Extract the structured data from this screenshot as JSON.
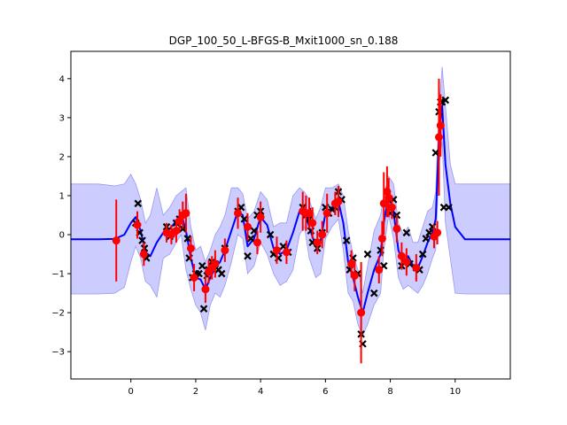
{
  "chart_data": {
    "type": "line",
    "title": "DGP_100_50_L-BFGS-B_Mxit1000_sn_0.188",
    "xlabel": "",
    "ylabel": "",
    "xlim": [
      -1.85,
      11.7
    ],
    "ylim": [
      -3.7,
      4.7
    ],
    "xticks": [
      0,
      2,
      4,
      6,
      8,
      10
    ],
    "yticks": [
      -3,
      -2,
      -1,
      0,
      1,
      2,
      3,
      4
    ],
    "grid": false,
    "colors": {
      "mean": "#0000ff",
      "band": "#ccccff",
      "band_edge": "#9999ee",
      "observed": "#000000",
      "predicted": "#ff0000",
      "error_bar": "#ff0000",
      "axes": "#000000"
    },
    "series": [
      {
        "type": "mean_line",
        "x": [
          -1.85,
          -1.0,
          -0.5,
          -0.2,
          0.0,
          0.15,
          0.3,
          0.45,
          0.6,
          0.8,
          1.0,
          1.2,
          1.4,
          1.55,
          1.7,
          1.85,
          2.0,
          2.15,
          2.3,
          2.45,
          2.6,
          2.75,
          2.9,
          3.1,
          3.3,
          3.45,
          3.6,
          3.8,
          4.0,
          4.2,
          4.4,
          4.6,
          4.8,
          5.0,
          5.2,
          5.35,
          5.5,
          5.7,
          5.85,
          6.0,
          6.2,
          6.4,
          6.55,
          6.7,
          6.85,
          7.0,
          7.15,
          7.3,
          7.5,
          7.7,
          7.8,
          7.95,
          8.1,
          8.25,
          8.4,
          8.55,
          8.7,
          8.85,
          9.0,
          9.15,
          9.3,
          9.4,
          9.5,
          9.6,
          9.7,
          9.85,
          10.0,
          10.3,
          11.0,
          11.7
        ],
        "y": [
          -0.12,
          -0.12,
          -0.11,
          0.0,
          0.3,
          0.45,
          0.1,
          -0.45,
          -0.55,
          -0.2,
          0.05,
          0.15,
          0.35,
          0.55,
          0.1,
          -0.6,
          -1.1,
          -1.15,
          -1.4,
          -1.1,
          -0.85,
          -0.7,
          -0.4,
          0.1,
          0.6,
          0.5,
          -0.3,
          -0.1,
          0.45,
          0.25,
          -0.35,
          -0.5,
          -0.4,
          0.05,
          0.6,
          0.65,
          0.2,
          -0.3,
          -0.15,
          0.55,
          0.7,
          0.85,
          0.3,
          -0.7,
          -1.1,
          -1.6,
          -2.0,
          -1.5,
          -0.9,
          -0.5,
          0.3,
          1.0,
          0.6,
          -0.4,
          -0.7,
          -0.55,
          -0.8,
          -0.85,
          -0.55,
          -0.2,
          0.05,
          0.4,
          2.5,
          3.3,
          1.8,
          0.8,
          0.2,
          -0.12,
          -0.12,
          -0.12
        ]
      },
      {
        "type": "uncertainty_band",
        "x": [
          -1.85,
          -1.0,
          -0.5,
          -0.2,
          0.0,
          0.15,
          0.3,
          0.45,
          0.6,
          0.8,
          1.0,
          1.2,
          1.4,
          1.55,
          1.7,
          1.85,
          2.0,
          2.15,
          2.3,
          2.45,
          2.6,
          2.75,
          2.9,
          3.1,
          3.3,
          3.45,
          3.6,
          3.8,
          4.0,
          4.2,
          4.4,
          4.6,
          4.8,
          5.0,
          5.2,
          5.35,
          5.5,
          5.7,
          5.85,
          6.0,
          6.2,
          6.4,
          6.55,
          6.7,
          6.85,
          7.0,
          7.15,
          7.3,
          7.5,
          7.7,
          7.8,
          7.95,
          8.1,
          8.25,
          8.4,
          8.55,
          8.7,
          8.85,
          9.0,
          9.15,
          9.3,
          9.4,
          9.5,
          9.6,
          9.7,
          9.85,
          10.0,
          10.3,
          11.0,
          11.7
        ],
        "upper": [
          1.3,
          1.3,
          1.25,
          1.3,
          1.55,
          1.3,
          0.9,
          0.3,
          0.5,
          1.2,
          0.5,
          0.7,
          1.0,
          1.1,
          1.2,
          0.2,
          -0.4,
          -0.3,
          -0.7,
          -0.4,
          0.0,
          0.2,
          0.5,
          1.2,
          1.2,
          1.05,
          0.4,
          0.6,
          1.1,
          0.9,
          0.2,
          0.3,
          0.3,
          1.0,
          1.2,
          1.1,
          0.9,
          0.4,
          0.7,
          1.2,
          1.2,
          1.3,
          1.0,
          0.1,
          -0.5,
          -0.9,
          -1.5,
          -0.8,
          0.1,
          0.5,
          1.0,
          1.5,
          1.3,
          0.3,
          0.0,
          0.2,
          -0.2,
          -0.2,
          0.2,
          0.6,
          0.7,
          1.1,
          3.2,
          4.3,
          3.3,
          1.8,
          1.3,
          1.3,
          1.3,
          1.3
        ],
        "lower": [
          -1.52,
          -1.52,
          -1.5,
          -1.35,
          -0.7,
          -0.3,
          -0.6,
          -1.2,
          -1.3,
          -1.6,
          -0.6,
          -0.5,
          -0.2,
          0.0,
          -0.9,
          -1.4,
          -1.8,
          -2.0,
          -2.45,
          -1.8,
          -1.5,
          -1.6,
          -1.3,
          -0.7,
          0.0,
          -0.1,
          -1.0,
          -0.8,
          -0.2,
          -0.5,
          -1.0,
          -1.3,
          -1.2,
          -0.9,
          0.0,
          0.2,
          -0.6,
          -1.1,
          -1.0,
          -0.1,
          0.2,
          0.4,
          -0.4,
          -1.5,
          -1.7,
          -2.3,
          -2.6,
          -2.3,
          -1.8,
          -1.5,
          -0.4,
          0.5,
          -0.1,
          -1.1,
          -1.4,
          -1.3,
          -1.4,
          -1.5,
          -1.3,
          -1.0,
          -0.6,
          -0.4,
          1.8,
          2.4,
          0.3,
          -0.6,
          -1.5,
          -1.52,
          -1.52,
          -1.52
        ]
      },
      {
        "type": "observed_points",
        "marker": "x",
        "x": [
          0.15,
          0.22,
          0.27,
          0.35,
          0.42,
          0.48,
          1.1,
          1.2,
          1.3,
          1.4,
          1.5,
          1.6,
          1.75,
          1.8,
          1.9,
          2.0,
          2.1,
          2.2,
          2.25,
          2.35,
          2.4,
          2.5,
          2.6,
          2.7,
          2.8,
          2.9,
          3.3,
          3.4,
          3.5,
          3.6,
          3.7,
          3.8,
          3.9,
          4.0,
          4.3,
          4.4,
          4.55,
          4.7,
          4.85,
          5.3,
          5.4,
          5.45,
          5.5,
          5.55,
          5.6,
          5.75,
          5.9,
          6.0,
          6.1,
          6.2,
          6.3,
          6.4,
          6.5,
          6.65,
          6.75,
          6.85,
          7.0,
          7.1,
          7.15,
          7.3,
          7.5,
          7.7,
          7.8,
          7.9,
          8.0,
          8.1,
          8.2,
          8.35,
          8.5,
          8.6,
          8.8,
          8.9,
          9.0,
          9.1,
          9.2,
          9.3,
          9.4,
          9.5,
          9.55,
          9.6,
          9.65,
          9.7,
          9.8
        ],
        "y": [
          0.3,
          0.8,
          0.05,
          -0.15,
          -0.35,
          -0.6,
          0.2,
          -0.05,
          0.1,
          0.3,
          0.4,
          0.15,
          -0.1,
          -0.6,
          -1.1,
          -1.0,
          -1.0,
          -0.8,
          -1.9,
          -1.05,
          -0.9,
          -0.7,
          -0.75,
          -0.9,
          -1.0,
          -0.35,
          0.6,
          0.7,
          0.4,
          -0.55,
          -0.1,
          0.1,
          0.5,
          0.6,
          0.0,
          -0.5,
          -0.6,
          -0.3,
          -0.45,
          0.7,
          0.5,
          0.6,
          0.4,
          0.1,
          -0.2,
          -0.35,
          0.05,
          0.7,
          0.55,
          0.65,
          0.7,
          1.1,
          0.9,
          -0.15,
          -0.9,
          -0.6,
          -1.0,
          -2.55,
          -2.8,
          -0.5,
          -1.5,
          -0.4,
          -0.8,
          0.8,
          0.55,
          0.9,
          0.5,
          -0.8,
          0.05,
          -0.75,
          -0.85,
          -0.9,
          -0.5,
          -0.1,
          0.05,
          0.2,
          2.1,
          3.15,
          3.4,
          3.4,
          0.7,
          3.45,
          0.7
        ]
      },
      {
        "type": "predicted_points",
        "marker": "o",
        "x": [
          -0.45,
          0.2,
          0.4,
          1.1,
          1.25,
          1.4,
          1.5,
          1.6,
          1.7,
          1.85,
          1.95,
          2.3,
          2.4,
          2.5,
          2.6,
          2.9,
          3.3,
          3.6,
          3.9,
          4.0,
          4.5,
          4.8,
          5.3,
          5.4,
          5.5,
          5.6,
          5.75,
          5.9,
          6.05,
          6.3,
          6.4,
          6.8,
          6.9,
          7.1,
          7.65,
          7.75,
          7.8,
          7.9,
          7.95,
          8.05,
          8.2,
          8.35,
          8.5,
          8.8,
          9.35,
          9.45,
          9.5,
          9.55
        ],
        "y": [
          -0.15,
          0.25,
          -0.5,
          0.05,
          0.0,
          0.1,
          0.35,
          0.5,
          0.55,
          -0.35,
          -1.1,
          -1.4,
          -0.95,
          -0.85,
          -0.75,
          -0.4,
          0.55,
          0.2,
          -0.2,
          0.45,
          -0.4,
          -0.45,
          0.6,
          0.55,
          0.55,
          0.3,
          -0.2,
          0.0,
          0.55,
          0.8,
          0.85,
          -0.75,
          -1.05,
          -2.0,
          -0.9,
          -0.1,
          0.8,
          1.1,
          0.95,
          0.7,
          0.15,
          -0.55,
          -0.7,
          -0.85,
          -0.05,
          0.05,
          2.5,
          2.8
        ],
        "error": [
          1.05,
          0.35,
          0.3,
          0.25,
          0.25,
          0.3,
          0.3,
          0.35,
          0.5,
          0.3,
          0.35,
          0.35,
          0.3,
          0.3,
          0.35,
          0.3,
          0.4,
          0.35,
          0.3,
          0.4,
          0.35,
          0.3,
          0.5,
          0.45,
          0.4,
          0.4,
          0.3,
          0.35,
          0.5,
          0.3,
          0.4,
          0.35,
          0.4,
          1.3,
          0.35,
          0.45,
          0.8,
          0.65,
          0.5,
          0.3,
          0.35,
          0.35,
          0.35,
          0.35,
          0.3,
          0.3,
          1.5,
          0.8
        ]
      }
    ]
  }
}
